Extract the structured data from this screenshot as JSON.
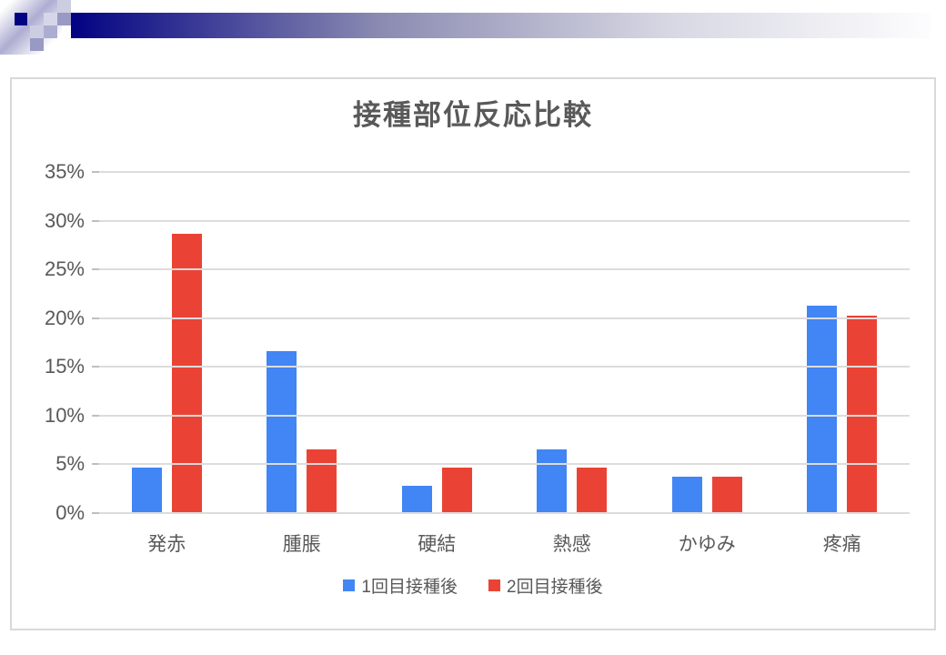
{
  "slide": {
    "background": "#ffffff",
    "header_decoration": {
      "navy": "#020283",
      "lavender_light": "#cdcde2",
      "lavender_light2": "#d6d6e9",
      "lavender_mid": "#9999c6",
      "lavender_mid2": "#adadd2"
    }
  },
  "chart_data": {
    "type": "bar",
    "title": "接種部位反応比較",
    "categories": [
      "発赤",
      "腫脹",
      "硬結",
      "熱感",
      "かゆみ",
      "疼痛"
    ],
    "series": [
      {
        "name": "1回目接種後",
        "color": "#4285F4",
        "values": [
          4.7,
          16.6,
          2.8,
          6.5,
          3.7,
          21.3
        ]
      },
      {
        "name": "2回目接種後",
        "color": "#EA4335",
        "values": [
          28.7,
          6.5,
          4.7,
          4.7,
          3.7,
          20.3
        ]
      }
    ],
    "ylim": [
      0,
      35
    ],
    "ytick_step": 5,
    "ytick_labels": [
      "0%",
      "5%",
      "10%",
      "15%",
      "20%",
      "25%",
      "30%",
      "35%"
    ],
    "grid": true,
    "legend_position": "bottom",
    "text_color": "#595959",
    "gridline_color": "#dcdcdc"
  }
}
